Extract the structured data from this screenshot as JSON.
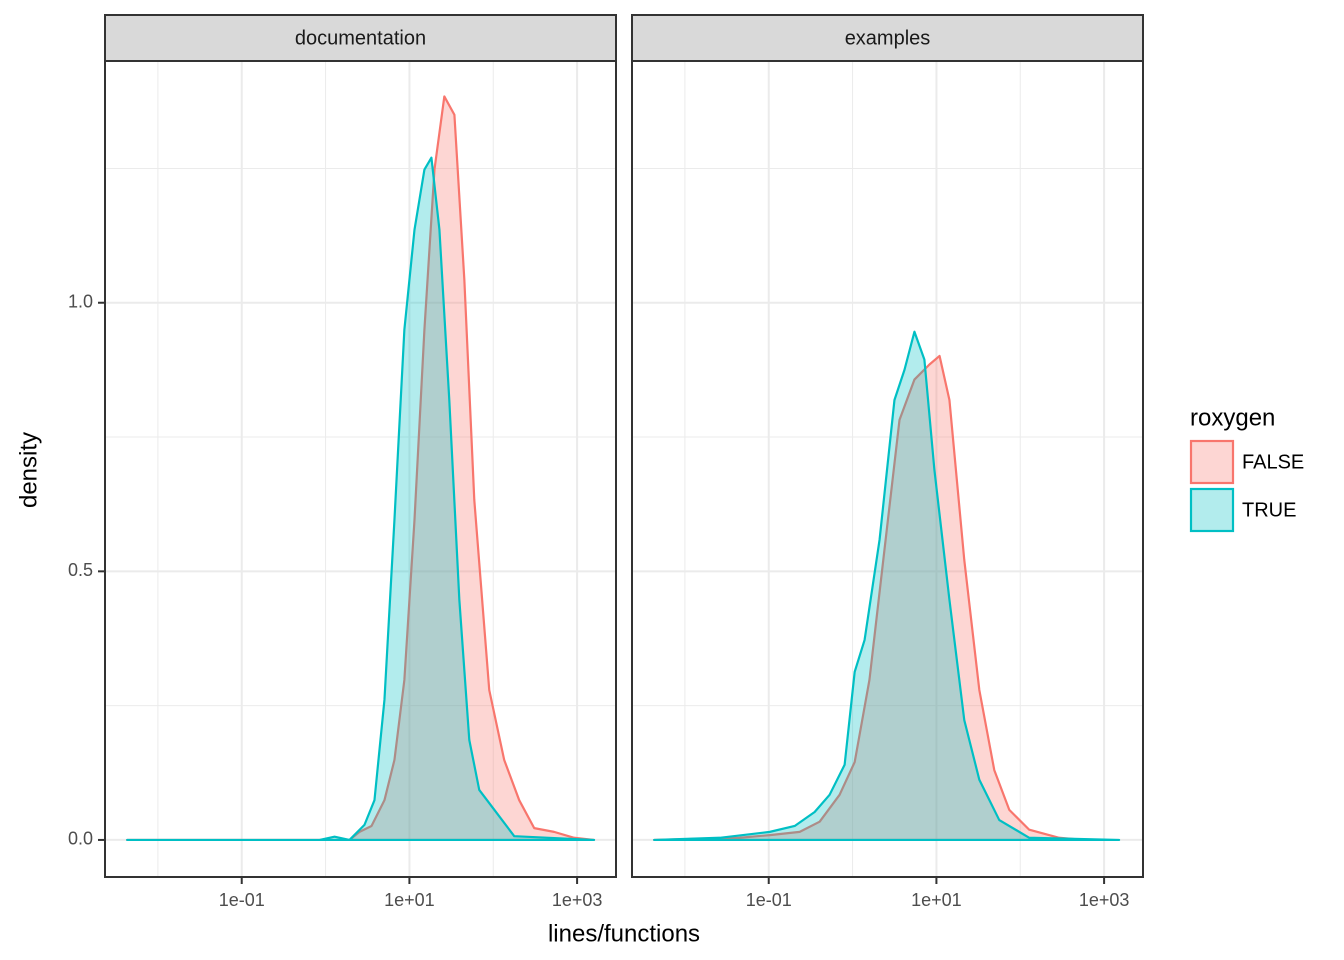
{
  "chart_data": {
    "type": "density",
    "x_label": "lines/functions",
    "y_label": "density",
    "legend_title": "roxygen",
    "legend_position": "right",
    "log_x": true,
    "grid": true,
    "xlim": [
      0.00234,
      2911
    ],
    "xticks": [
      {
        "value": 0.1,
        "label": "1e-01"
      },
      {
        "value": 10,
        "label": "1e+01"
      },
      {
        "value": 1000,
        "label": "1e+03"
      }
    ],
    "ylim": [
      -0.069,
      1.45
    ],
    "yticks": [
      {
        "value": 0,
        "label": "0.0"
      },
      {
        "value": 0.5,
        "label": "0.5"
      },
      {
        "value": 1,
        "label": "1.0"
      }
    ],
    "facets": [
      {
        "title": "documentation",
        "series": [
          {
            "name": "FALSE",
            "color": "#F8766D",
            "x": [
              0.0043,
              1.93,
              2.54,
              3.53,
              5.04,
              6.63,
              8.71,
              11.5,
              15.1,
              19.9,
              26.1,
              34.4,
              45.2,
              59.4,
              89.6,
              135,
              204,
              308,
              532,
              921,
              1592
            ],
            "values": [
              0,
              0,
              0.015,
              0.026,
              0.074,
              0.149,
              0.298,
              0.596,
              0.95,
              1.248,
              1.384,
              1.35,
              1.043,
              0.633,
              0.279,
              0.149,
              0.074,
              0.022,
              0.015,
              0.004,
              0
            ]
          },
          {
            "name": "TRUE",
            "color": "#00BFC4",
            "x": [
              0.0043,
              0.849,
              1.28,
              1.93,
              2.91,
              3.83,
              5.04,
              6.63,
              8.71,
              11.5,
              15.1,
              18.3,
              22.8,
              29.9,
              39.4,
              51.8,
              68.1,
              103,
              178,
              1592
            ],
            "values": [
              0,
              0,
              0.006,
              0,
              0.028,
              0.074,
              0.261,
              0.596,
              0.95,
              1.136,
              1.248,
              1.27,
              1.136,
              0.819,
              0.447,
              0.186,
              0.093,
              0.056,
              0.007,
              0
            ]
          }
        ]
      },
      {
        "title": "examples",
        "series": [
          {
            "name": "FALSE",
            "color": "#F8766D",
            "x": [
              0.0043,
              0.0452,
              0.103,
              0.234,
              0.405,
              0.7,
              1.06,
              1.59,
              2.4,
              3.63,
              5.47,
              8.26,
              10.9,
              14.3,
              21.5,
              32.5,
              49,
              74,
              128,
              291,
              578
            ],
            "values": [
              0,
              0.004,
              0.009,
              0.015,
              0.034,
              0.084,
              0.145,
              0.298,
              0.54,
              0.782,
              0.857,
              0.885,
              0.901,
              0.819,
              0.521,
              0.279,
              0.13,
              0.056,
              0.019,
              0.004,
              0
            ]
          },
          {
            "name": "TRUE",
            "color": "#00BFC4",
            "x": [
              0.0043,
              0.0261,
              0.103,
              0.204,
              0.353,
              0.532,
              0.804,
              1.06,
              1.39,
              2.1,
              3.16,
              4.16,
              5.47,
              7.19,
              9.46,
              14.3,
              21.5,
              32.5,
              56.2,
              128,
              1510
            ],
            "values": [
              0,
              0.004,
              0.015,
              0.026,
              0.052,
              0.084,
              0.14,
              0.313,
              0.372,
              0.559,
              0.819,
              0.875,
              0.946,
              0.894,
              0.689,
              0.447,
              0.223,
              0.112,
              0.037,
              0.004,
              0
            ]
          }
        ]
      }
    ]
  }
}
